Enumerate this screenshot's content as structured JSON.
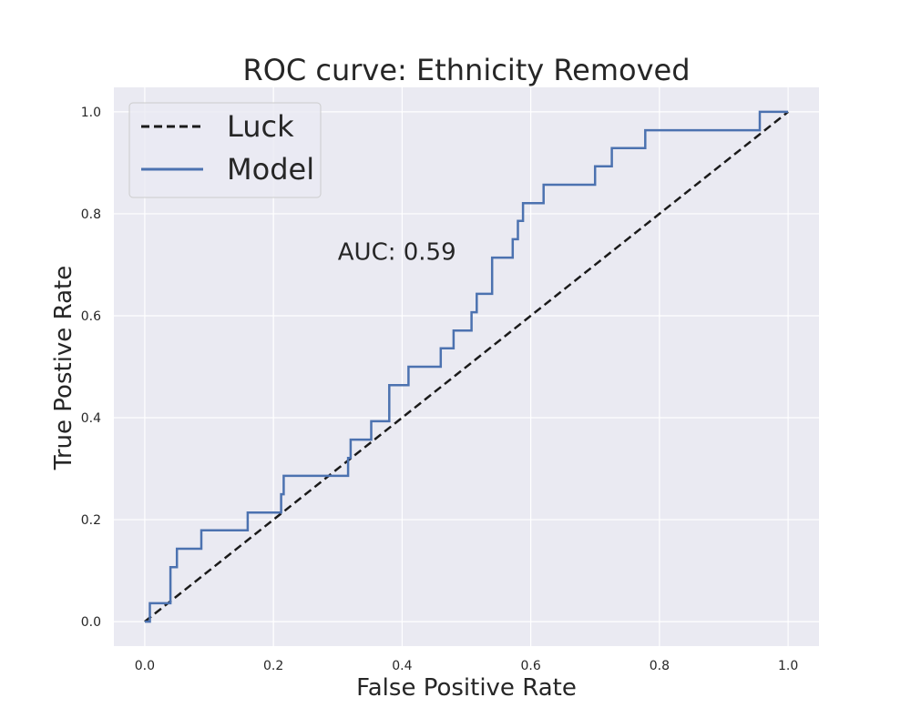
{
  "chart_data": {
    "type": "line",
    "title": "ROC curve: Ethnicity Removed",
    "xlabel": "False Positive Rate",
    "ylabel": "True Postive Rate",
    "xlim": [
      -0.048,
      1.048
    ],
    "ylim": [
      -0.048,
      1.048
    ],
    "xticks": [
      "0.0",
      "0.2",
      "0.4",
      "0.6",
      "0.8",
      "1.0"
    ],
    "yticks": [
      "0.0",
      "0.2",
      "0.4",
      "0.6",
      "0.8",
      "1.0"
    ],
    "grid": true,
    "legend_position": "top-left",
    "annotation": {
      "text": "AUC: 0.59",
      "x": 0.3,
      "y": 0.71
    },
    "series": [
      {
        "name": "Luck",
        "style": "dashed",
        "color": "#1a1a1a",
        "x": [
          0,
          1
        ],
        "y": [
          0,
          1
        ]
      },
      {
        "name": "Model",
        "style": "solid",
        "color": "#4c72b0",
        "x": [
          0.0,
          0.0,
          0.008,
          0.008,
          0.04,
          0.04,
          0.05,
          0.05,
          0.088,
          0.088,
          0.16,
          0.16,
          0.212,
          0.212,
          0.216,
          0.216,
          0.316,
          0.316,
          0.32,
          0.32,
          0.352,
          0.352,
          0.38,
          0.38,
          0.41,
          0.41,
          0.46,
          0.46,
          0.48,
          0.48,
          0.508,
          0.508,
          0.516,
          0.516,
          0.54,
          0.54,
          0.572,
          0.572,
          0.58,
          0.58,
          0.588,
          0.588,
          0.62,
          0.62,
          0.7,
          0.7,
          0.726,
          0.726,
          0.778,
          0.778,
          0.956,
          0.956,
          1.0
        ],
        "y": [
          0.0,
          0.0,
          0.0,
          0.036,
          0.036,
          0.107,
          0.107,
          0.143,
          0.143,
          0.179,
          0.179,
          0.214,
          0.214,
          0.25,
          0.25,
          0.286,
          0.286,
          0.321,
          0.321,
          0.357,
          0.357,
          0.393,
          0.393,
          0.464,
          0.464,
          0.5,
          0.5,
          0.536,
          0.536,
          0.571,
          0.571,
          0.607,
          0.607,
          0.643,
          0.643,
          0.714,
          0.714,
          0.75,
          0.75,
          0.786,
          0.786,
          0.821,
          0.821,
          0.857,
          0.857,
          0.893,
          0.893,
          0.929,
          0.929,
          0.964,
          0.964,
          1.0,
          1.0
        ]
      }
    ]
  }
}
